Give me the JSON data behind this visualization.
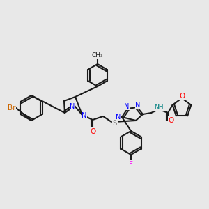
{
  "bg_color": "#e8e8e8",
  "bond_color": "#1a1a1a",
  "bond_lw": 1.5,
  "fig_size": [
    3.0,
    3.0
  ],
  "dpi": 100,
  "atom_colors": {
    "Br": "#cc6600",
    "N": "#0000ff",
    "O": "#ff0000",
    "F": "#ff00ff",
    "S": "#888888",
    "H": "#008080",
    "C": "#1a1a1a"
  }
}
